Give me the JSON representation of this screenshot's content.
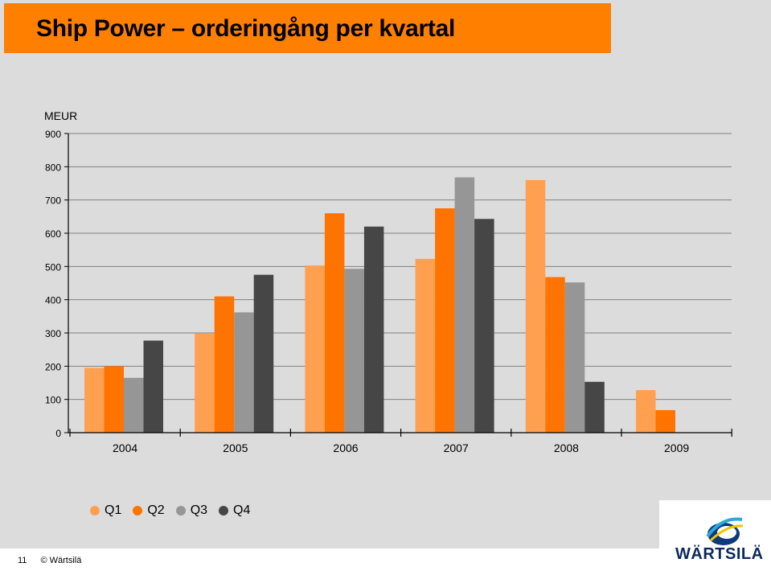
{
  "title": "Ship Power – orderingång per kvartal",
  "footer": {
    "page_number": "11",
    "copyright": "© Wärtsilä"
  },
  "logo": {
    "text": "WÄRTSILÄ"
  },
  "colors": {
    "title_bar": "#ff7f00",
    "Q1": "#ffa050",
    "Q2": "#ff7300",
    "Q3": "#969696",
    "Q4": "#464646"
  },
  "chart_data": {
    "type": "bar",
    "ylabel": "MEUR",
    "ylim": [
      0,
      900
    ],
    "yticks": [
      0,
      100,
      200,
      300,
      400,
      500,
      600,
      700,
      800,
      900
    ],
    "grid": true,
    "legend_position": "bottom-left",
    "categories": [
      "2004",
      "2005",
      "2006",
      "2007",
      "2008",
      "2009"
    ],
    "series": [
      {
        "name": "Q1",
        "values": [
          195,
          298,
          503,
          523,
          760,
          128
        ]
      },
      {
        "name": "Q2",
        "values": [
          200,
          410,
          660,
          675,
          468,
          68
        ]
      },
      {
        "name": "Q3",
        "values": [
          165,
          362,
          493,
          768,
          452,
          null
        ]
      },
      {
        "name": "Q4",
        "values": [
          277,
          475,
          620,
          643,
          153,
          null
        ]
      }
    ]
  }
}
